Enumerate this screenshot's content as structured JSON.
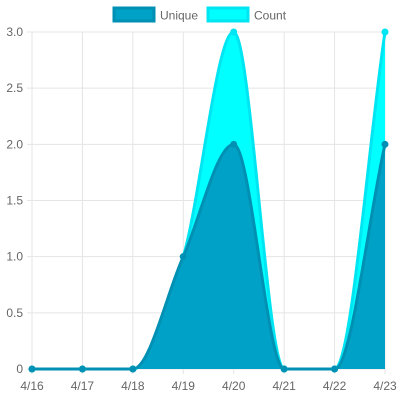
{
  "chart_data": {
    "type": "area",
    "categories": [
      "4/16",
      "4/17",
      "4/18",
      "4/19",
      "4/20",
      "4/21",
      "4/22",
      "4/23"
    ],
    "series": [
      {
        "name": "Count",
        "values": [
          0,
          0,
          0,
          1,
          3,
          0,
          0,
          3
        ],
        "color": "#00ffff",
        "border": "#00e5f2"
      },
      {
        "name": "Unique",
        "values": [
          0,
          0,
          0,
          1,
          2,
          0,
          0,
          2
        ],
        "color": "#00a1c6",
        "border": "#0090b3"
      }
    ],
    "legend": {
      "placement": "top"
    },
    "yticks": [
      "0",
      "0.5",
      "1.0",
      "1.5",
      "2.0",
      "2.5",
      "3.0"
    ],
    "ylim": [
      0,
      3
    ],
    "grid": true
  }
}
